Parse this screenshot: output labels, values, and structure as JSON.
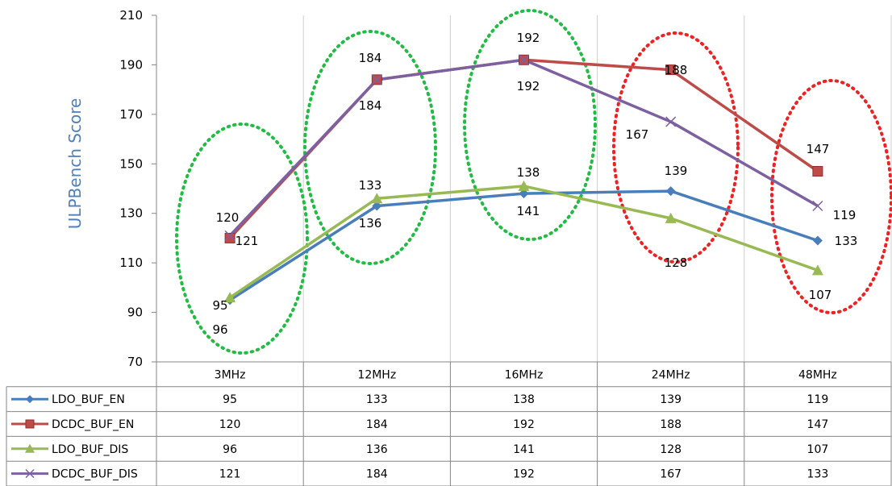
{
  "chart_data": {
    "type": "line",
    "ylabel": "ULPBench Score",
    "ylim": [
      70,
      210
    ],
    "yticks": [
      70,
      90,
      110,
      130,
      150,
      170,
      190,
      210
    ],
    "categories": [
      "3MHz",
      "12MHz",
      "16MHz",
      "24MHz",
      "48MHz"
    ],
    "grid": "vertical",
    "legend": "data-table",
    "series": [
      {
        "name": "LDO_BUF_EN",
        "values": [
          95,
          133,
          138,
          139,
          119
        ],
        "color": "#4a7ebb",
        "marker": "diamond"
      },
      {
        "name": "DCDC_BUF_EN",
        "values": [
          120,
          184,
          192,
          188,
          147
        ],
        "color": "#be4b48",
        "marker": "square"
      },
      {
        "name": "LDO_BUF_DIS",
        "values": [
          96,
          136,
          141,
          128,
          107
        ],
        "color": "#98b954",
        "marker": "triangle"
      },
      {
        "name": "DCDC_BUF_DIS",
        "values": [
          121,
          184,
          192,
          167,
          133
        ],
        "color": "#7d60a0",
        "marker": "x"
      }
    ],
    "point_labels": [
      {
        "text": "95"
      },
      {
        "text": "96"
      },
      {
        "text": "120"
      },
      {
        "text": "121"
      },
      {
        "text": "133"
      },
      {
        "text": "136"
      },
      {
        "text": "184"
      },
      {
        "text": "184"
      },
      {
        "text": "138"
      },
      {
        "text": "141"
      },
      {
        "text": "192"
      },
      {
        "text": "192"
      },
      {
        "text": "139"
      },
      {
        "text": "128"
      },
      {
        "text": "188"
      },
      {
        "text": "167"
      },
      {
        "text": "147"
      },
      {
        "text": "119"
      },
      {
        "text": "133"
      },
      {
        "text": "107"
      }
    ],
    "annotations": [
      {
        "shape": "ellipse",
        "style": "dotted",
        "color": "#22bb44",
        "category": "3MHz"
      },
      {
        "shape": "ellipse",
        "style": "dotted",
        "color": "#22bb44",
        "category": "12MHz"
      },
      {
        "shape": "ellipse",
        "style": "dotted",
        "color": "#22bb44",
        "category": "16MHz"
      },
      {
        "shape": "ellipse",
        "style": "dotted",
        "color": "#ee2222",
        "category": "24MHz"
      },
      {
        "shape": "ellipse",
        "style": "dotted",
        "color": "#ee2222",
        "category": "48MHz"
      }
    ]
  }
}
